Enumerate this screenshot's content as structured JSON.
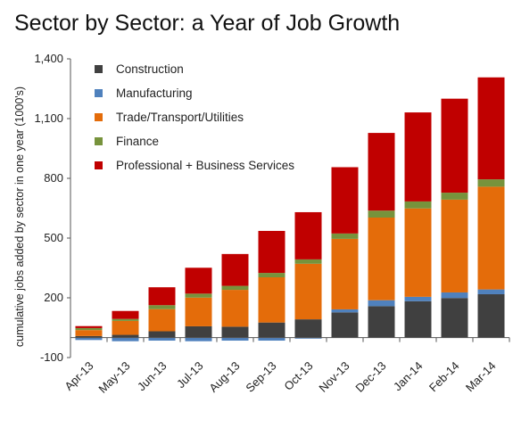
{
  "chart_data": {
    "type": "bar",
    "stacked": true,
    "title": "Sector by Sector: a Year of Job Growth",
    "ylabel": "cumulative jobs added by sector in one year (1000's)",
    "xlabel": "",
    "ylim": [
      -100,
      1400
    ],
    "yticks": [
      "-100",
      "200",
      "500",
      "800",
      "1,100",
      "1,400"
    ],
    "ytick_values": [
      -100,
      200,
      500,
      800,
      1100,
      1400
    ],
    "grid": false,
    "legend_position": "top-left",
    "categories": [
      "Apr-13",
      "May-13",
      "Jun-13",
      "Jul-13",
      "Aug-13",
      "Sep-13",
      "Oct-13",
      "Nov-13",
      "Dec-13",
      "Jan-14",
      "Feb-14",
      "Mar-14"
    ],
    "series": [
      {
        "name": "Construction",
        "color": "#404040",
        "values": [
          8,
          14,
          32,
          57,
          55,
          76,
          92,
          127,
          158,
          183,
          199,
          218
        ]
      },
      {
        "name": "Manufacturing",
        "color": "#4F81BD",
        "values": [
          -12,
          -18,
          -15,
          -18,
          -15,
          -15,
          -5,
          15,
          30,
          22,
          28,
          24
        ]
      },
      {
        "name": "Trade/Transport/Utilities",
        "color": "#E46C0A",
        "values": [
          30,
          70,
          111,
          144,
          185,
          227,
          279,
          354,
          415,
          444,
          466,
          516
        ]
      },
      {
        "name": "Finance",
        "color": "#77933C",
        "values": [
          10,
          10,
          20,
          20,
          20,
          22,
          22,
          27,
          35,
          35,
          35,
          37
        ]
      },
      {
        "name": "Professional + Business Services",
        "color": "#C00000",
        "values": [
          10,
          40,
          90,
          130,
          160,
          211,
          237,
          333,
          390,
          447,
          472,
          512
        ]
      }
    ]
  }
}
